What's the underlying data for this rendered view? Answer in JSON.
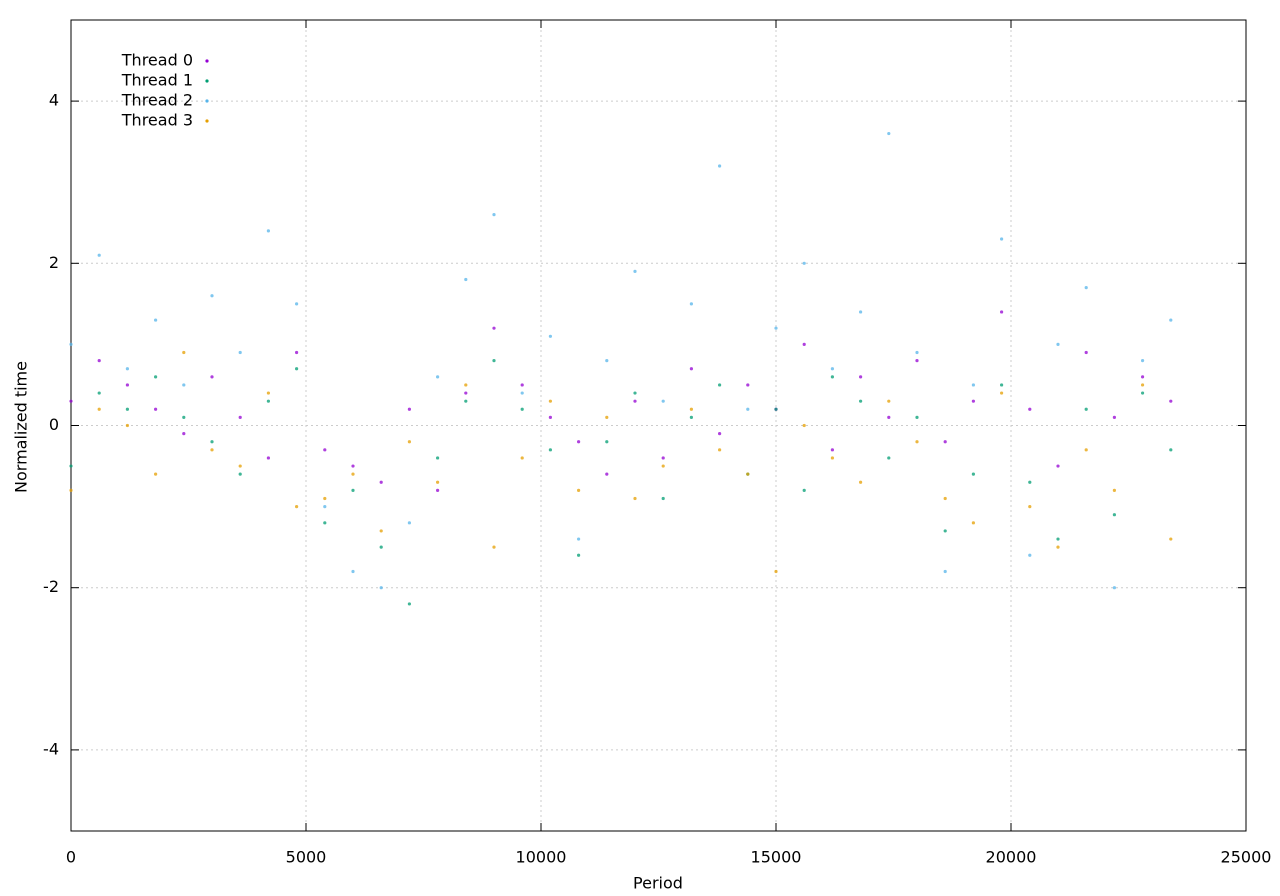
{
  "chart_data": {
    "type": "scatter",
    "xlabel": "Period",
    "ylabel": "Normalized time",
    "x": [
      0,
      600,
      1200,
      1800,
      2400,
      3000,
      3600,
      4200,
      4800,
      5400,
      6000,
      6600,
      7200,
      7800,
      8400,
      9000,
      9600,
      10200,
      10800,
      11400,
      12000,
      12600,
      13200,
      13800,
      14400,
      15000,
      15600,
      16200,
      16800,
      17400,
      18000,
      18600,
      19200,
      19800,
      20400,
      21000,
      21600,
      22200,
      22800,
      23400
    ],
    "series": [
      {
        "name": "Thread 0",
        "color": "#9400d3",
        "values": [
          0.3,
          0.8,
          0.5,
          0.2,
          -0.1,
          0.6,
          0.1,
          -0.4,
          0.9,
          -0.3,
          -0.5,
          -0.7,
          0.2,
          -0.8,
          0.4,
          1.2,
          0.5,
          0.1,
          -0.2,
          -0.6,
          0.3,
          -0.4,
          0.7,
          -0.1,
          0.5,
          0.2,
          1.0,
          -0.3,
          0.6,
          0.1,
          0.8,
          -0.2,
          0.3,
          1.4,
          0.2,
          -0.5,
          0.9,
          0.1,
          0.6,
          0.3
        ]
      },
      {
        "name": "Thread 1",
        "color": "#009e73",
        "values": [
          -0.5,
          0.4,
          0.2,
          0.6,
          0.1,
          -0.2,
          -0.6,
          0.3,
          0.7,
          -1.2,
          -0.8,
          -1.5,
          -2.2,
          -0.4,
          0.3,
          0.8,
          0.2,
          -0.3,
          -1.6,
          -0.2,
          0.4,
          -0.9,
          0.1,
          0.5,
          -0.6,
          0.2,
          -0.8,
          0.6,
          0.3,
          -0.4,
          0.1,
          -1.3,
          -0.6,
          0.5,
          -0.7,
          -1.4,
          0.2,
          -1.1,
          0.4,
          -0.3
        ]
      },
      {
        "name": "Thread 2",
        "color": "#56b4e9",
        "values": [
          1.0,
          2.1,
          0.7,
          1.3,
          0.5,
          1.6,
          0.9,
          2.4,
          1.5,
          -1.0,
          -1.8,
          -2.0,
          -1.2,
          0.6,
          1.8,
          2.6,
          0.4,
          1.1,
          -1.4,
          0.8,
          1.9,
          0.3,
          1.5,
          3.2,
          0.2,
          1.2,
          2.0,
          0.7,
          1.4,
          3.6,
          0.9,
          -1.8,
          0.5,
          2.3,
          -1.6,
          1.0,
          1.7,
          -2.0,
          0.8,
          1.3
        ]
      },
      {
        "name": "Thread 3",
        "color": "#e69f00",
        "values": [
          -0.8,
          0.2,
          0.0,
          -0.6,
          0.9,
          -0.3,
          -0.5,
          0.4,
          -1.0,
          -0.9,
          -0.6,
          -1.3,
          -0.2,
          -0.7,
          0.5,
          -1.5,
          -0.4,
          0.3,
          -0.8,
          0.1,
          -0.9,
          -0.5,
          0.2,
          -0.3,
          -0.6,
          -1.8,
          0.0,
          -0.4,
          -0.7,
          0.3,
          -0.2,
          -0.9,
          -1.2,
          0.4,
          -1.0,
          -1.5,
          -0.3,
          -0.8,
          0.5,
          -1.4
        ]
      }
    ],
    "xlim": [
      0,
      25000
    ],
    "xticks": [
      0,
      5000,
      10000,
      15000,
      20000,
      25000
    ],
    "ylim": [
      -5,
      5
    ],
    "yticks": [
      -4,
      -2,
      0,
      2,
      4
    ],
    "grid": true,
    "legend": "top-left"
  }
}
